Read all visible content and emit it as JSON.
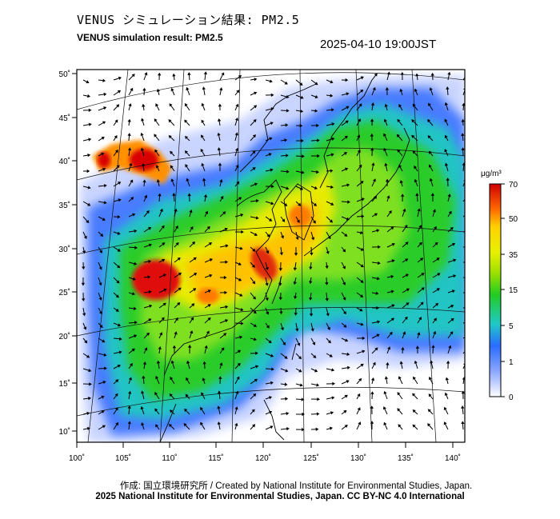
{
  "header": {
    "title_jp": "VENUS シミュレーション結果: PM2.5",
    "title_en": "VENUS simulation result: PM2.5",
    "timestamp": "2025-04-10 19:00JST"
  },
  "map": {
    "region": "East Asia",
    "lat_ticks": [
      "50˚",
      "45˚",
      "40˚",
      "35˚",
      "30˚",
      "25˚",
      "20˚",
      "15˚",
      "10˚"
    ],
    "lon_ticks": [
      "100˚",
      "105˚",
      "110˚",
      "115˚",
      "120˚",
      "125˚",
      "130˚",
      "135˚",
      "140˚"
    ],
    "field": "PM2.5 concentration",
    "overlay": "wind vectors"
  },
  "colorbar": {
    "unit": "μg/m³",
    "ticks": [
      "70",
      "50",
      "35",
      "15",
      "5",
      "1",
      "0"
    ],
    "colors": [
      "#d00000",
      "#ff6a00",
      "#ffd000",
      "#9be000",
      "#22cc22",
      "#20c8c8",
      "#2a6bff",
      "#8aa6ff",
      "#ffffff"
    ]
  },
  "footer": {
    "credit_jp": "作成: 国立環境研究所 / Created by National Institute for Environmental Studies, Japan.",
    "credit_en": "2025 National Institute for Environmental Studies, Japan. CC BY-NC 4.0 International"
  }
}
